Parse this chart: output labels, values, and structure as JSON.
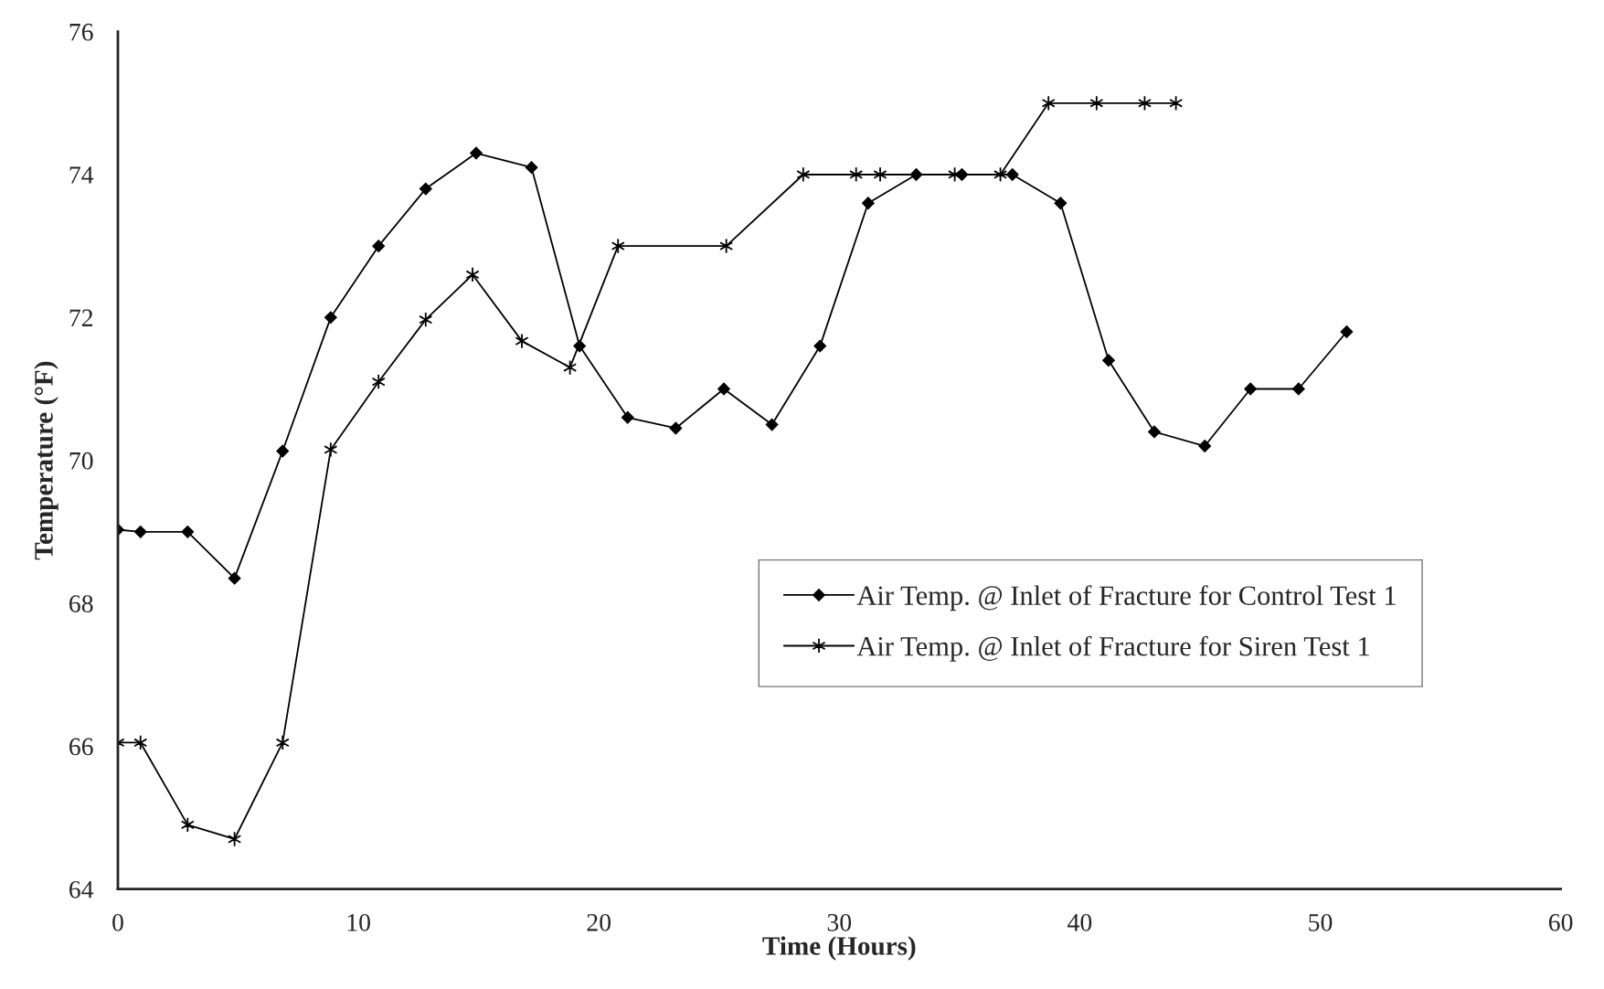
{
  "chart_data": {
    "type": "line",
    "xlabel": "Time (Hours)",
    "ylabel": "Temperature (°F)",
    "xlim": [
      0,
      60
    ],
    "xticks": [
      0,
      10,
      20,
      30,
      40,
      50,
      60
    ],
    "ylim": [
      64,
      76
    ],
    "yticks": [
      64,
      66,
      68,
      70,
      72,
      74,
      76
    ],
    "grid": false,
    "legend": "center right",
    "series": [
      {
        "name": "Air Temp. @ Inlet of Fracture for Control Test 1",
        "color": "#000000",
        "marker": "diamond",
        "x": [
          0,
          0.94,
          2.9,
          4.85,
          6.85,
          8.85,
          10.84,
          12.8,
          14.9,
          17.2,
          19.2,
          21.2,
          23.2,
          25.2,
          27.2,
          29.2,
          31.2,
          33.2,
          35.1,
          37.2,
          39.2,
          41.2,
          43.1,
          45.2,
          47.1,
          49.1,
          51.1
        ],
        "values": [
          69.03,
          69.0,
          69.0,
          68.35,
          70.13,
          72.0,
          73.0,
          73.8,
          74.3,
          74.1,
          71.6,
          70.6,
          70.45,
          71.0,
          70.5,
          71.6,
          73.6,
          74.0,
          74.0,
          74.0,
          73.6,
          71.4,
          70.4,
          70.2,
          71.0,
          71.0,
          71.8
        ]
      },
      {
        "name": "Air Temp. @ Inlet of Fracture for Siren Test 1",
        "color": "#000000",
        "marker": "cross",
        "x": [
          0,
          0.94,
          2.9,
          4.85,
          6.85,
          8.85,
          10.84,
          12.8,
          14.75,
          16.8,
          18.8,
          20.8,
          25.3,
          28.5,
          30.7,
          31.7,
          34.8,
          36.7,
          38.7,
          40.7,
          42.7,
          44.0
        ],
        "values": [
          66.05,
          66.05,
          64.9,
          64.7,
          66.05,
          70.15,
          71.1,
          71.97,
          72.6,
          71.67,
          71.3,
          73.0,
          73.0,
          74.0,
          74.0,
          74.0,
          74.0,
          74.0,
          75.0,
          75.0,
          75.0,
          75.0
        ]
      }
    ]
  }
}
